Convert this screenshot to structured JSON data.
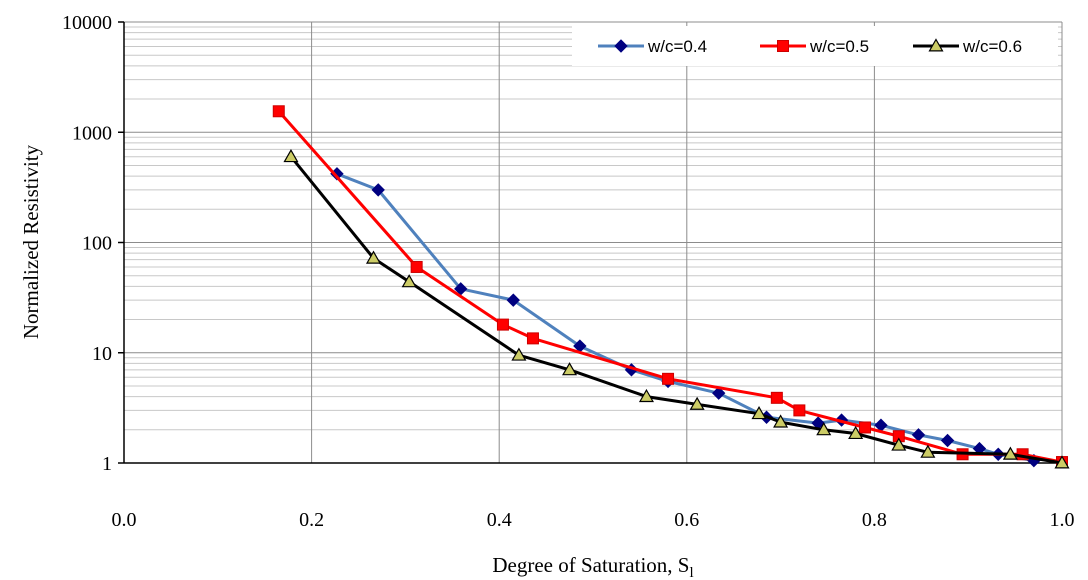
{
  "chart_data": {
    "type": "line",
    "title": "",
    "xlabel": "Degree of Saturation, S",
    "xlabel_subscript": "l",
    "ylabel": "Normalized Resistivity",
    "xlim": [
      0.0,
      1.0
    ],
    "ylim": [
      1,
      10000
    ],
    "yscale": "log",
    "x_ticks": [
      "0.0",
      "0.2",
      "0.4",
      "0.6",
      "0.8",
      "1.0"
    ],
    "y_ticks": [
      "1",
      "10",
      "100",
      "1000",
      "10000"
    ],
    "grid": true,
    "legend_position": "top-right",
    "series": [
      {
        "name": "w/c=0.4",
        "color": "#4F81BD",
        "marker": "diamond",
        "marker_color": "#000080",
        "x": [
          0.227,
          0.271,
          0.359,
          0.415,
          0.486,
          0.541,
          0.58,
          0.634,
          0.685,
          0.74,
          0.765,
          0.807,
          0.847,
          0.878,
          0.912,
          0.932,
          0.97
        ],
        "y": [
          420,
          300,
          38,
          30,
          11.5,
          7,
          5.5,
          4.3,
          2.6,
          2.3,
          2.45,
          2.2,
          1.8,
          1.6,
          1.35,
          1.2,
          1.05
        ]
      },
      {
        "name": "w/c=0.5",
        "color": "#FF0000",
        "marker": "square",
        "marker_color": "#FF0000",
        "x": [
          0.165,
          0.312,
          0.404,
          0.436,
          0.58,
          0.696,
          0.72,
          0.79,
          0.826,
          0.894,
          0.958,
          1.0
        ],
        "y": [
          1550,
          60,
          18,
          13.5,
          5.8,
          3.9,
          3.0,
          2.1,
          1.75,
          1.2,
          1.2,
          1.02
        ]
      },
      {
        "name": "w/c=0.6",
        "color": "#000000",
        "marker": "triangle",
        "marker_color": "#CCCC66",
        "x": [
          0.178,
          0.266,
          0.304,
          0.421,
          0.475,
          0.557,
          0.611,
          0.677,
          0.7,
          0.746,
          0.78,
          0.826,
          0.857,
          0.945,
          1.0
        ],
        "y": [
          600,
          72,
          44,
          9.5,
          7,
          4.0,
          3.4,
          2.8,
          2.35,
          2.0,
          1.85,
          1.45,
          1.25,
          1.2,
          1.0
        ]
      }
    ]
  }
}
